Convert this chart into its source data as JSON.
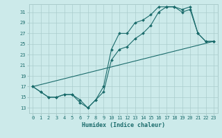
{
  "xlabel": "Humidex (Indice chaleur)",
  "bg_color": "#cceaea",
  "grid_color": "#aacccc",
  "line_color": "#1a6b6b",
  "xlim": [
    -0.5,
    23.5
  ],
  "ylim": [
    12,
    32.5
  ],
  "xticks": [
    0,
    1,
    2,
    3,
    4,
    5,
    6,
    7,
    8,
    9,
    10,
    11,
    12,
    13,
    14,
    15,
    16,
    17,
    18,
    19,
    20,
    21,
    22,
    23
  ],
  "yticks": [
    13,
    15,
    17,
    19,
    21,
    23,
    25,
    27,
    29,
    31
  ],
  "line1_x": [
    0,
    1,
    2,
    3,
    4,
    5,
    6,
    7,
    8,
    9,
    10,
    11,
    12,
    13,
    14,
    15,
    16,
    17,
    18,
    19,
    20,
    21,
    22,
    23
  ],
  "line1_y": [
    17,
    16,
    15,
    15,
    15.5,
    15.5,
    14,
    13,
    14.5,
    17,
    24,
    27,
    27,
    29,
    29.5,
    30.5,
    32,
    32,
    32,
    31.5,
    32,
    27,
    25.5,
    25.5
  ],
  "line2_x": [
    0,
    1,
    2,
    3,
    4,
    5,
    6,
    7,
    8,
    9,
    10,
    11,
    12,
    13,
    14,
    15,
    16,
    17,
    18,
    19,
    20,
    21,
    22,
    23
  ],
  "line2_y": [
    17,
    16,
    15,
    15,
    15.5,
    15.5,
    14.5,
    13,
    14.5,
    16,
    22,
    24,
    24.5,
    26,
    27,
    28.5,
    31,
    32,
    32,
    31,
    31.5,
    27,
    25.5,
    25.5
  ],
  "line3_x": [
    0,
    23
  ],
  "line3_y": [
    17,
    25.5
  ]
}
